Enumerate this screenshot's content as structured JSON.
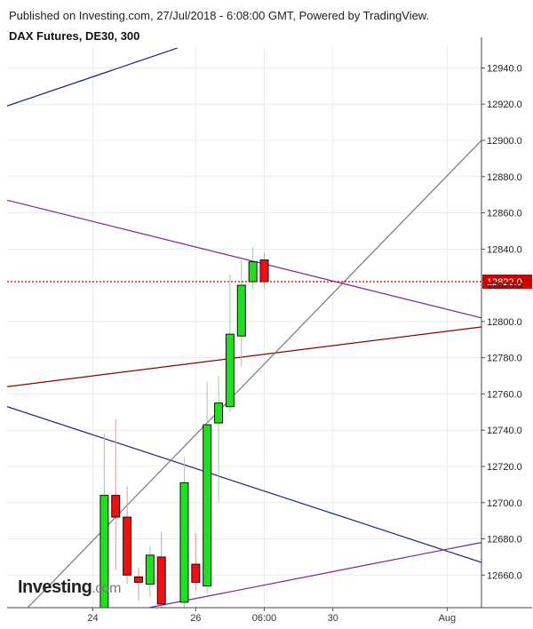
{
  "header": {
    "published_text": "Published on Investing.com, 27/Jul/2018 - 6:08:00 GMT, Powered by TradingView.",
    "instrument": "DAX Futures, DE30, 300"
  },
  "logo": {
    "brand": "Investing",
    "suffix": ".com"
  },
  "chart_data": {
    "type": "candlestick",
    "y_ticks": [
      12660,
      12680,
      12700,
      12720,
      12740,
      12760,
      12780,
      12800,
      12820,
      12840,
      12860,
      12880,
      12900,
      12920,
      12940
    ],
    "y_tick_labels": [
      "12660.0",
      "12680.0",
      "12700.0",
      "12720.0",
      "12740.0",
      "12760.0",
      "12780.0",
      "12800.0",
      "12820.0",
      "12840.0",
      "12860.0",
      "12880.0",
      "12900.0",
      "12920.0",
      "12940.0"
    ],
    "ylim": [
      12642,
      12952
    ],
    "x_ticks": [
      {
        "label": "24",
        "t": 0
      },
      {
        "label": "26",
        "t": 9
      },
      {
        "label": "06:00",
        "t": 15
      },
      {
        "label": "30",
        "t": 21
      },
      {
        "label": "Aug",
        "t": 31
      }
    ],
    "xlim": [
      -7.5,
      34
    ],
    "last_price": 12822.0,
    "last_price_label": "12822.0",
    "colors": {
      "up": "#22dd22",
      "down": "#ee1111",
      "last_price": "#cc0000",
      "grid": "#ececec"
    },
    "candles": [
      {
        "t": 1,
        "o": 12642,
        "h": 12738,
        "l": 12640,
        "c": 12704
      },
      {
        "t": 2,
        "o": 12704,
        "h": 12746,
        "l": 12663,
        "c": 12692
      },
      {
        "t": 3,
        "o": 12692,
        "h": 12709,
        "l": 12655,
        "c": 12660
      },
      {
        "t": 4,
        "o": 12659,
        "h": 12664,
        "l": 12646,
        "c": 12656
      },
      {
        "t": 5,
        "o": 12655,
        "h": 12676,
        "l": 12648,
        "c": 12671
      },
      {
        "t": 6,
        "o": 12670,
        "h": 12684,
        "l": 12642,
        "c": 12644
      },
      {
        "t": 8,
        "o": 12645,
        "h": 12725,
        "l": 12642,
        "c": 12711
      },
      {
        "t": 9,
        "o": 12666,
        "h": 12683,
        "l": 12652,
        "c": 12656
      },
      {
        "t": 10,
        "o": 12654,
        "h": 12767,
        "l": 12650,
        "c": 12743
      },
      {
        "t": 11,
        "o": 12744,
        "h": 12770,
        "l": 12700,
        "c": 12755
      },
      {
        "t": 12,
        "o": 12753,
        "h": 12826,
        "l": 12750,
        "c": 12793
      },
      {
        "t": 13,
        "o": 12792,
        "h": 12834,
        "l": 12775,
        "c": 12820
      },
      {
        "t": 14,
        "o": 12822,
        "h": 12841,
        "l": 12818,
        "c": 12833
      },
      {
        "t": 15,
        "o": 12834,
        "h": 12838,
        "l": 12818,
        "c": 12822
      }
    ],
    "trendlines": [
      {
        "color": "#1a237e",
        "p1": {
          "t": -7.5,
          "v": 12919
        },
        "p2": {
          "t": 7.4,
          "v": 12951
        }
      },
      {
        "color": "#7b1fa2",
        "p1": {
          "t": -7.5,
          "v": 12867
        },
        "p2": {
          "t": 34,
          "v": 12802
        }
      },
      {
        "color": "#8b0000",
        "p1": {
          "t": -7.5,
          "v": 12764
        },
        "p2": {
          "t": 34,
          "v": 12797
        }
      },
      {
        "color": "#1a237e",
        "p1": {
          "t": -7.5,
          "v": 12753
        },
        "p2": {
          "t": 34,
          "v": 12667
        }
      },
      {
        "color": "#7b1fa2",
        "p1": {
          "t": 4.9,
          "v": 12642
        },
        "p2": {
          "t": 34,
          "v": 12678
        }
      },
      {
        "color": "#777777",
        "p1": {
          "t": -5.7,
          "v": 12642
        },
        "p2": {
          "t": 34,
          "v": 12900
        }
      }
    ]
  }
}
